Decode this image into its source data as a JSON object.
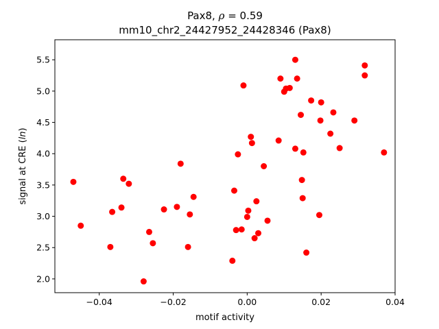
{
  "chart_data": {
    "type": "scatter",
    "title_gene": "Pax8",
    "title_rho_symbol": "ρ",
    "title_rho_value": "0.59",
    "subtitle": "mm10_chr2_24427952_24428346 (Pax8)",
    "xlabel": "motif activity",
    "ylabel_prefix": "signal at CRE (",
    "ylabel_italic": "ln",
    "ylabel_suffix": ")",
    "xlim": [
      -0.052,
      0.04
    ],
    "ylim": [
      1.78,
      5.82
    ],
    "xticks": [
      -0.04,
      -0.02,
      0.0,
      0.02,
      0.04
    ],
    "xtick_labels": [
      "−0.04",
      "−0.02",
      "0.00",
      "0.02",
      "0.04"
    ],
    "yticks": [
      2.0,
      2.5,
      3.0,
      3.5,
      4.0,
      4.5,
      5.0,
      5.5
    ],
    "ytick_labels": [
      "2.0",
      "2.5",
      "3.0",
      "3.5",
      "4.0",
      "4.5",
      "5.0",
      "5.5"
    ],
    "grid": false,
    "marker_color": "#ff0000",
    "points": [
      [
        -0.047,
        3.55
      ],
      [
        -0.045,
        2.85
      ],
      [
        -0.037,
        2.51
      ],
      [
        -0.0365,
        3.07
      ],
      [
        -0.034,
        3.14
      ],
      [
        -0.0335,
        3.6
      ],
      [
        -0.032,
        3.52
      ],
      [
        -0.028,
        1.96
      ],
      [
        -0.0265,
        2.75
      ],
      [
        -0.0255,
        2.57
      ],
      [
        -0.0225,
        3.11
      ],
      [
        -0.019,
        3.15
      ],
      [
        -0.018,
        3.84
      ],
      [
        -0.016,
        2.51
      ],
      [
        -0.0155,
        3.03
      ],
      [
        -0.0145,
        3.31
      ],
      [
        -0.004,
        2.29
      ],
      [
        -0.0035,
        3.41
      ],
      [
        -0.003,
        2.78
      ],
      [
        -0.0025,
        3.99
      ],
      [
        -0.0015,
        2.79
      ],
      [
        -0.001,
        5.09
      ],
      [
        0.0,
        2.99
      ],
      [
        0.0003,
        3.09
      ],
      [
        0.001,
        4.27
      ],
      [
        0.0013,
        4.17
      ],
      [
        0.002,
        2.65
      ],
      [
        0.0025,
        3.24
      ],
      [
        0.003,
        2.73
      ],
      [
        0.0045,
        3.8
      ],
      [
        0.0055,
        2.93
      ],
      [
        0.0085,
        4.21
      ],
      [
        0.009,
        5.2
      ],
      [
        0.01,
        4.99
      ],
      [
        0.0105,
        5.04
      ],
      [
        0.0115,
        5.05
      ],
      [
        0.013,
        5.5
      ],
      [
        0.013,
        4.08
      ],
      [
        0.0135,
        5.2
      ],
      [
        0.0145,
        4.62
      ],
      [
        0.0148,
        3.58
      ],
      [
        0.015,
        3.29
      ],
      [
        0.0152,
        4.02
      ],
      [
        0.016,
        2.42
      ],
      [
        0.0173,
        4.85
      ],
      [
        0.0195,
        3.02
      ],
      [
        0.0198,
        4.53
      ],
      [
        0.02,
        4.82
      ],
      [
        0.0225,
        4.32
      ],
      [
        0.0233,
        4.66
      ],
      [
        0.025,
        4.09
      ],
      [
        0.029,
        4.53
      ],
      [
        0.0318,
        5.41
      ],
      [
        0.0318,
        5.25
      ],
      [
        0.037,
        4.02
      ]
    ]
  }
}
